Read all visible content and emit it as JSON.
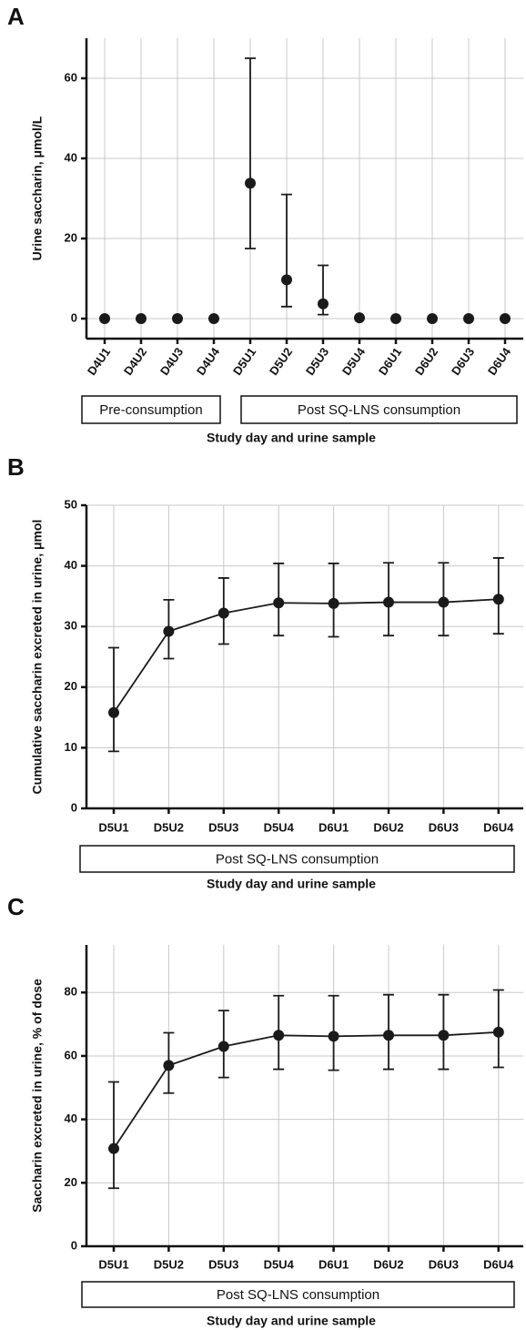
{
  "chart_data": [
    {
      "type": "scatter",
      "panel": "A",
      "y_label": "Urine saccharin, μmol/L",
      "x_label": "Study day and urine sample",
      "groups": [
        "Pre-consumption",
        "Post SQ-LNS consumption"
      ],
      "categories": [
        "D4U1",
        "D4U2",
        "D4U3",
        "D4U4",
        "D5U1",
        "D5U2",
        "D5U3",
        "D5U4",
        "D6U1",
        "D6U2",
        "D6U3",
        "D6U4"
      ],
      "values": [
        0,
        0,
        0,
        0,
        33.8,
        9.7,
        3.7,
        0.2,
        0,
        0,
        0,
        0
      ],
      "lower": [
        null,
        null,
        null,
        null,
        17.5,
        3,
        1,
        null,
        null,
        null,
        null,
        null
      ],
      "upper": [
        null,
        null,
        null,
        null,
        65,
        31,
        13.3,
        null,
        null,
        null,
        null,
        null
      ],
      "ylim": [
        -5,
        70
      ],
      "yticks": [
        0,
        20,
        40,
        60
      ],
      "grid": true,
      "line": false,
      "color": "#1a1a1a"
    },
    {
      "type": "line",
      "panel": "B",
      "y_label": "Cumulative saccharin excreted in urine, μmol",
      "x_label": "Study day and urine sample",
      "groups": [
        "Post SQ-LNS consumption"
      ],
      "categories": [
        "D5U1",
        "D5U2",
        "D5U3",
        "D5U4",
        "D6U1",
        "D6U2",
        "D6U3",
        "D6U4"
      ],
      "values": [
        15.8,
        29.2,
        32.2,
        33.9,
        33.8,
        34.0,
        34.0,
        34.5
      ],
      "lower": [
        9.4,
        24.7,
        27.1,
        28.5,
        28.3,
        28.5,
        28.5,
        28.8
      ],
      "upper": [
        26.5,
        34.4,
        38.0,
        40.4,
        40.4,
        40.5,
        40.5,
        41.3
      ],
      "ylim": [
        0,
        50
      ],
      "yticks": [
        0,
        10,
        20,
        30,
        40,
        50
      ],
      "grid": true,
      "line": true,
      "color": "#1a1a1a"
    },
    {
      "type": "line",
      "panel": "C",
      "y_label": "Saccharin excreted in urine, % of dose",
      "x_label": "Study day and urine sample",
      "groups": [
        "Post SQ-LNS consumption"
      ],
      "categories": [
        "D5U1",
        "D5U2",
        "D5U3",
        "D5U4",
        "D6U1",
        "D6U2",
        "D6U3",
        "D6U4"
      ],
      "values": [
        30.8,
        57.0,
        63.0,
        66.5,
        66.2,
        66.5,
        66.5,
        67.5
      ],
      "lower": [
        18.3,
        48.3,
        53.2,
        55.8,
        55.5,
        55.8,
        55.8,
        56.4
      ],
      "upper": [
        51.8,
        67.3,
        74.3,
        79.0,
        79.0,
        79.3,
        79.3,
        80.8
      ],
      "ylim": [
        0,
        95
      ],
      "yticks": [
        0,
        20,
        40,
        60,
        80
      ],
      "grid": true,
      "line": true,
      "color": "#1a1a1a"
    }
  ]
}
